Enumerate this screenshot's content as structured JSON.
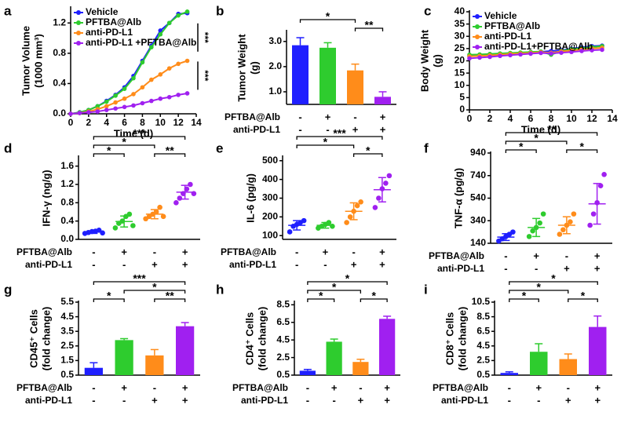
{
  "chart_data": [
    {
      "type": "line",
      "panel": "a",
      "ylabel": [
        "Tumor Volume",
        "(1000 mm³)"
      ],
      "xlabel": "Time (d)",
      "x": [
        0,
        1,
        2,
        3,
        4,
        5,
        6,
        7,
        8,
        9,
        10,
        11,
        12,
        13
      ],
      "xlim": [
        0,
        14
      ],
      "xticks": [
        0,
        2,
        4,
        6,
        8,
        10,
        12,
        14
      ],
      "ylim": [
        0,
        1.4
      ],
      "yticks": [
        {
          "value": 0,
          "label": "0.0"
        },
        0.4,
        0.8,
        1.2
      ],
      "legend": "upper left",
      "series": [
        {
          "name": "Vehicle",
          "color": "#1f1fff",
          "values": [
            0,
            0.02,
            0.05,
            0.1,
            0.17,
            0.25,
            0.35,
            0.5,
            0.7,
            0.9,
            1.1,
            1.2,
            1.32,
            1.33
          ]
        },
        {
          "name": "PFTBA@Alb",
          "color": "#2ecc2e",
          "values": [
            0,
            0.02,
            0.05,
            0.1,
            0.16,
            0.24,
            0.33,
            0.47,
            0.68,
            0.88,
            1.05,
            1.2,
            1.3,
            1.35
          ]
        },
        {
          "name": "anti-PD-L1",
          "color": "#ff8c1a",
          "values": [
            0,
            0.01,
            0.03,
            0.06,
            0.1,
            0.15,
            0.2,
            0.26,
            0.35,
            0.45,
            0.52,
            0.6,
            0.66,
            0.7
          ]
        },
        {
          "name": "anti-PD-L1 +PFTBA@Alb",
          "color": "#a020f0",
          "values": [
            0,
            0.01,
            0.02,
            0.03,
            0.05,
            0.07,
            0.09,
            0.11,
            0.14,
            0.17,
            0.2,
            0.22,
            0.25,
            0.27
          ]
        }
      ],
      "annotations": [
        "***",
        "***"
      ]
    },
    {
      "type": "bar",
      "panel": "b",
      "ylabel": [
        "Tumor Weight",
        "(g)"
      ],
      "ylim": [
        0.5,
        3.4
      ],
      "yticks": [
        {
          "value": 1,
          "label": "1.0"
        },
        {
          "value": 2,
          "label": "2.0"
        },
        {
          "value": 3,
          "label": "3.0"
        }
      ],
      "values": [
        2.85,
        2.75,
        1.85,
        0.8
      ],
      "errors": [
        0.3,
        0.2,
        0.25,
        0.2
      ],
      "colors": [
        "#1f1fff",
        "#2ecc2e",
        "#ff8c1a",
        "#a020f0"
      ],
      "rows": [
        {
          "label": "PFTBA@Alb",
          "marks": [
            "-",
            "+",
            "-",
            "+"
          ]
        },
        {
          "label": "anti-PD-L1",
          "marks": [
            "-",
            "-",
            "+",
            "+"
          ]
        }
      ],
      "brackets": [
        {
          "from": 0,
          "to": 2,
          "label": "*"
        },
        {
          "from": 2,
          "to": 3,
          "label": "**"
        }
      ]
    },
    {
      "type": "line",
      "panel": "c",
      "ylabel": [
        "Body Weight",
        "(g)"
      ],
      "xlabel": "Time (d)",
      "x": [
        0,
        1,
        2,
        3,
        4,
        5,
        6,
        7,
        8,
        9,
        10,
        11,
        12,
        13
      ],
      "xlim": [
        0,
        14
      ],
      "xticks": [
        0,
        2,
        4,
        6,
        8,
        10,
        12,
        14
      ],
      "ylim": [
        0,
        40
      ],
      "yticks": [
        0,
        5,
        10,
        15,
        20,
        25,
        30,
        35,
        40
      ],
      "legend": "upper left",
      "series": [
        {
          "name": "Vehicle",
          "color": "#1f1fff",
          "values": [
            22,
            22.3,
            22.5,
            22.8,
            23,
            23.2,
            23.5,
            23.7,
            24,
            24.3,
            25,
            25.5,
            26,
            26.2
          ]
        },
        {
          "name": "PFTBA@Alb",
          "color": "#2ecc2e",
          "values": [
            22.5,
            22.6,
            22.8,
            23,
            23.2,
            23.4,
            23.6,
            23.8,
            22.5,
            24,
            24.8,
            25.2,
            25.6,
            26
          ]
        },
        {
          "name": "anti-PD-L1",
          "color": "#ff8c1a",
          "values": [
            21.8,
            22,
            22.2,
            22.5,
            22.8,
            23,
            23.2,
            23.5,
            23.3,
            23.8,
            24.2,
            24.6,
            25,
            25.3
          ]
        },
        {
          "name": "anti-PD-L1+PFTBA@Alb",
          "color": "#a020f0",
          "values": [
            21,
            21.3,
            21.6,
            22,
            22.3,
            22.6,
            22.9,
            23.2,
            23,
            23.3,
            23.6,
            24,
            24.3,
            24.5
          ]
        }
      ]
    },
    {
      "type": "dot",
      "panel": "d",
      "ylabel": [
        "IFN-γ (ng/g)"
      ],
      "ylim": [
        0,
        1.8
      ],
      "yticks": [
        {
          "value": 0,
          "label": "0.0"
        },
        0.4,
        0.8,
        1.2,
        1.6
      ],
      "points": [
        [
          0.13,
          0.15,
          0.17,
          0.18,
          0.2,
          0.14
        ],
        [
          0.25,
          0.35,
          0.4,
          0.5,
          0.55,
          0.3
        ],
        [
          0.45,
          0.5,
          0.55,
          0.6,
          0.7,
          0.5
        ],
        [
          0.8,
          0.9,
          1.0,
          1.1,
          1.2,
          1.0
        ]
      ],
      "values": [
        0.16,
        0.39,
        0.55,
        1.03
      ],
      "errors": [
        0.03,
        0.12,
        0.1,
        0.15
      ],
      "colors": [
        "#1f1fff",
        "#2ecc2e",
        "#ff8c1a",
        "#a020f0"
      ],
      "rows": [
        {
          "label": "PFTBA@Alb",
          "marks": [
            "-",
            "+",
            "-",
            "+"
          ]
        },
        {
          "label": "anti-PD-L1",
          "marks": [
            "-",
            "-",
            "+",
            "+"
          ]
        }
      ],
      "brackets": [
        {
          "from": 0,
          "to": 1,
          "label": "*"
        },
        {
          "from": 0,
          "to": 2,
          "label": "*"
        },
        {
          "from": 0,
          "to": 3,
          "label": "***"
        },
        {
          "from": 2,
          "to": 3,
          "label": "**"
        }
      ]
    },
    {
      "type": "dot",
      "panel": "e",
      "ylabel": [
        "IL-6 (pg/g)"
      ],
      "ylim": [
        80,
        520
      ],
      "yticks": [
        100,
        200,
        300,
        400,
        500
      ],
      "points": [
        [
          120,
          150,
          160,
          170,
          180
        ],
        [
          140,
          150,
          160,
          170,
          150
        ],
        [
          170,
          200,
          230,
          260,
          280
        ],
        [
          250,
          300,
          350,
          380,
          420
        ]
      ],
      "values": [
        155,
        155,
        230,
        345
      ],
      "errors": [
        25,
        15,
        45,
        65
      ],
      "colors": [
        "#1f1fff",
        "#2ecc2e",
        "#ff8c1a",
        "#a020f0"
      ],
      "rows": [
        {
          "label": "PFTBA@Alb",
          "marks": [
            "-",
            "+",
            "-",
            "+"
          ]
        },
        {
          "label": "anti-PD-L1",
          "marks": [
            "-",
            "-",
            "+",
            "+"
          ]
        }
      ],
      "brackets": [
        {
          "from": 0,
          "to": 2,
          "label": "*"
        },
        {
          "from": 0,
          "to": 3,
          "label": "***"
        },
        {
          "from": 2,
          "to": 3,
          "label": "*"
        }
      ]
    },
    {
      "type": "dot",
      "panel": "f",
      "ylabel": [
        "TNF-α (pg/g)"
      ],
      "ylim": [
        140,
        940
      ],
      "yticks": [
        140,
        340,
        540,
        740,
        940
      ],
      "points": [
        [
          160,
          180,
          200,
          220,
          240
        ],
        [
          200,
          250,
          280,
          320,
          400
        ],
        [
          220,
          260,
          300,
          330,
          400
        ],
        [
          300,
          400,
          500,
          650,
          750
        ]
      ],
      "values": [
        195,
        280,
        300,
        490
      ],
      "errors": [
        30,
        80,
        75,
        180
      ],
      "colors": [
        "#1f1fff",
        "#2ecc2e",
        "#ff8c1a",
        "#a020f0"
      ],
      "rows": [
        {
          "label": "PFTBA@Alb",
          "marks": [
            "-",
            "+",
            "-",
            "+"
          ]
        },
        {
          "label": "anti-PD-L1",
          "marks": [
            "-",
            "-",
            "+",
            "+"
          ]
        }
      ],
      "brackets": [
        {
          "from": 0,
          "to": 1,
          "label": "*"
        },
        {
          "from": 0,
          "to": 2,
          "label": "*"
        },
        {
          "from": 0,
          "to": 3,
          "label": "**"
        },
        {
          "from": 2,
          "to": 3,
          "label": "*"
        }
      ]
    },
    {
      "type": "bar",
      "panel": "g",
      "ylabel": [
        "CD45⁺ Cells",
        "(fold change)"
      ],
      "ylim": [
        0.5,
        5.5
      ],
      "yticks": [
        0.5,
        1.5,
        2.5,
        3.5,
        4.5,
        5.5
      ],
      "values": [
        1.0,
        2.9,
        1.85,
        3.85
      ],
      "errors": [
        0.35,
        0.1,
        0.4,
        0.25
      ],
      "colors": [
        "#1f1fff",
        "#2ecc2e",
        "#ff8c1a",
        "#a020f0"
      ],
      "rows": [
        {
          "label": "PFTBA@Alb",
          "marks": [
            "-",
            "+",
            "-",
            "+"
          ]
        },
        {
          "label": "anti-PD-L1",
          "marks": [
            "-",
            "-",
            "+",
            "+"
          ]
        }
      ],
      "brackets": [
        {
          "from": 0,
          "to": 1,
          "label": "*"
        },
        {
          "from": 0,
          "to": 3,
          "label": "***"
        },
        {
          "from": 1,
          "to": 3,
          "label": "*"
        },
        {
          "from": 2,
          "to": 3,
          "label": "**"
        }
      ]
    },
    {
      "type": "bar",
      "panel": "h",
      "ylabel": [
        "CD4⁺ Cells",
        "(fold change)"
      ],
      "ylim": [
        0.5,
        8.8
      ],
      "yticks": [
        0.5,
        2.5,
        4.5,
        6.5,
        8.5
      ],
      "values": [
        1.0,
        4.3,
        2.0,
        6.9
      ],
      "errors": [
        0.15,
        0.3,
        0.3,
        0.3
      ],
      "colors": [
        "#1f1fff",
        "#2ecc2e",
        "#ff8c1a",
        "#a020f0"
      ],
      "rows": [
        {
          "label": "PFTBA@Alb",
          "marks": [
            "-",
            "+",
            "-",
            "+"
          ]
        },
        {
          "label": "anti-PD-L1",
          "marks": [
            "-",
            "-",
            "+",
            "+"
          ]
        }
      ],
      "brackets": [
        {
          "from": 0,
          "to": 1,
          "label": "*"
        },
        {
          "from": 0,
          "to": 2,
          "label": "*"
        },
        {
          "from": 0,
          "to": 3,
          "label": "*"
        },
        {
          "from": 2,
          "to": 3,
          "label": "*"
        }
      ]
    },
    {
      "type": "bar",
      "panel": "i",
      "ylabel": [
        "CD8⁺ Cells",
        "(fold change)"
      ],
      "ylim": [
        0.5,
        10.5
      ],
      "yticks": [
        0.5,
        2.5,
        4.5,
        6.5,
        8.5,
        10.5
      ],
      "values": [
        0.8,
        3.7,
        2.7,
        7.1
      ],
      "errors": [
        0.15,
        1.1,
        0.7,
        1.5
      ],
      "colors": [
        "#1f1fff",
        "#2ecc2e",
        "#ff8c1a",
        "#a020f0"
      ],
      "rows": [
        {
          "label": "PFTBA@Alb",
          "marks": [
            "-",
            "+",
            "-",
            "+"
          ]
        },
        {
          "label": "anti-PD-L1",
          "marks": [
            "-",
            "-",
            "+",
            "+"
          ]
        }
      ],
      "brackets": [
        {
          "from": 0,
          "to": 1,
          "label": "*"
        },
        {
          "from": 0,
          "to": 2,
          "label": "*"
        },
        {
          "from": 0,
          "to": 3,
          "label": "*"
        },
        {
          "from": 2,
          "to": 3,
          "label": "*"
        }
      ]
    }
  ]
}
